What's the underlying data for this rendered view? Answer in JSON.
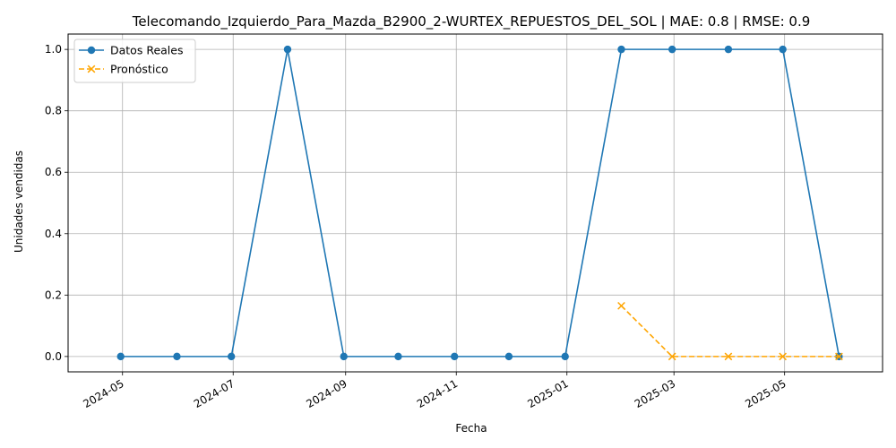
{
  "chart_data": {
    "type": "line",
    "title": "Telecomando_Izquierdo_Para_Mazda_B2900_2-WURTEX_REPUESTOS_DEL_SOL | MAE: 0.8 | RMSE: 0.9",
    "xlabel": "Fecha",
    "ylabel": "Unidades vendidas",
    "xlim": [
      "2024-04-01",
      "2025-06-24"
    ],
    "ylim": [
      -0.05,
      1.05
    ],
    "x_ticks": [
      "2024-05",
      "2024-07",
      "2024-09",
      "2024-11",
      "2025-01",
      "2025-03",
      "2025-05"
    ],
    "x_tick_dates": [
      "2024-05-01",
      "2024-07-01",
      "2024-09-01",
      "2024-11-01",
      "2025-01-01",
      "2025-03-01",
      "2025-05-01"
    ],
    "y_ticks": [
      "0.0",
      "0.2",
      "0.4",
      "0.6",
      "0.8",
      "1.0"
    ],
    "y_tick_values": [
      0,
      0.2,
      0.4,
      0.6,
      0.8,
      1.0
    ],
    "grid": true,
    "legend_position": "top-left",
    "series": [
      {
        "name": "Datos Reales",
        "color": "#1f77b4",
        "marker": "circle",
        "linestyle": "solid",
        "x": [
          "2024-04-30",
          "2024-05-31",
          "2024-06-30",
          "2024-07-31",
          "2024-08-31",
          "2024-09-30",
          "2024-10-31",
          "2024-11-30",
          "2024-12-31",
          "2025-01-31",
          "2025-02-28",
          "2025-03-31",
          "2025-04-30",
          "2025-05-31"
        ],
        "y": [
          0,
          0,
          0,
          1,
          0,
          0,
          0,
          0,
          0,
          1,
          1,
          1,
          1,
          0
        ]
      },
      {
        "name": "Pronóstico",
        "color": "#ffa500",
        "marker": "x",
        "linestyle": "dashed",
        "x": [
          "2025-01-31",
          "2025-02-28",
          "2025-03-31",
          "2025-04-30",
          "2025-05-31"
        ],
        "y": [
          0.165,
          0,
          0,
          0,
          0
        ]
      }
    ]
  }
}
